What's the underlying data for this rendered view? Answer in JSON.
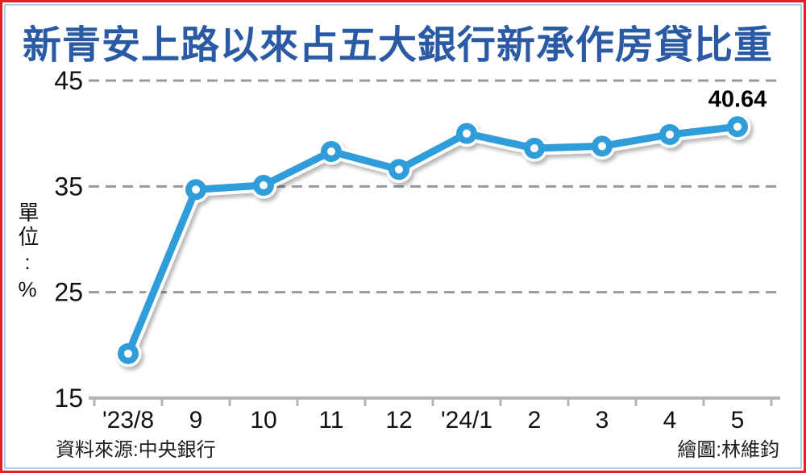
{
  "title": "新青安上路以來占五大銀行新承作房貸比重",
  "y_axis": {
    "unit_label": "單位:%"
  },
  "footer": {
    "source": "資料來源:中央銀行",
    "credit": "繪圖:林維鈞"
  },
  "colors": {
    "line": "#2f9dd9",
    "marker_hole": "#ffffff",
    "title": "#2b5aa5",
    "outer_border": "#ec1c24",
    "inner_border": "#a9d4ea",
    "grid": "#999999",
    "axis": "#b4b4b4",
    "tick_text": "#111111",
    "annotation_text": "#000000"
  },
  "chart_data": {
    "type": "line",
    "title": "新青安上路以來占五大銀行新承作房貸比重",
    "categories": [
      "'23/8",
      "9",
      "10",
      "11",
      "12",
      "'24/1",
      "2",
      "3",
      "4",
      "5"
    ],
    "values": [
      19.2,
      34.7,
      35.1,
      38.3,
      36.6,
      40.0,
      38.6,
      38.8,
      39.9,
      40.64
    ],
    "xlabel": "",
    "ylabel": "單位:%",
    "ylim": [
      15,
      45
    ],
    "yticks": [
      45,
      35,
      25,
      15
    ],
    "grid": "horizontal-dashed",
    "legend_position": "none",
    "annotations": [
      {
        "category": "5",
        "text": "40.64"
      }
    ]
  }
}
